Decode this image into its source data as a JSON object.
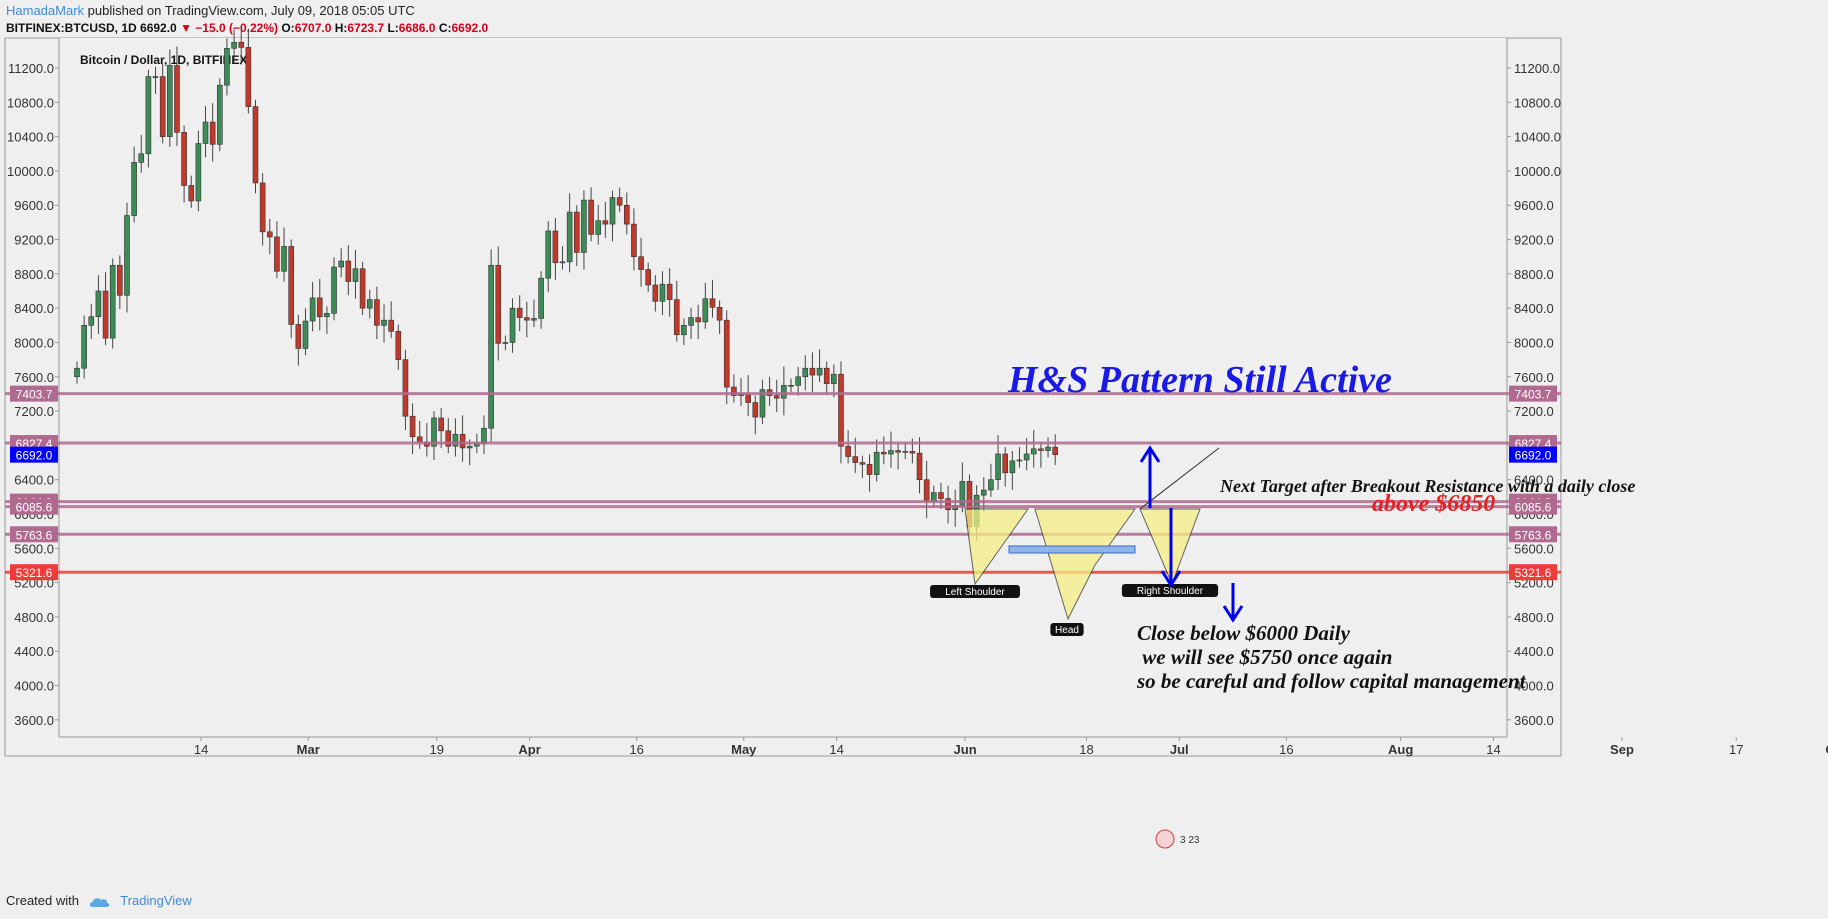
{
  "header": {
    "author": "HamadaMark",
    "published_text": "published on TradingView.com, July 09, 2018 05:05 UTC",
    "symbol": "BITFINEX:BTCUSD, 1D",
    "last": "6692.0",
    "change": "▼ −15.0 (−0.22%)",
    "o_label": "O:",
    "o": "6707.0",
    "h_label": "H:",
    "h": "6723.7",
    "l_label": "L:",
    "l": "6686.0",
    "c_label": "C:",
    "c": "6692.0"
  },
  "footer": {
    "created_with": "Created with",
    "brand": "TradingView"
  },
  "chart_data": {
    "type": "candlestick",
    "title": "Bitcoin / Dollar, 1D, BITFINEX",
    "ylim": [
      3400,
      11550
    ],
    "y_ticks": [
      "11200.0",
      "10800.0",
      "10400.0",
      "10000.0",
      "9600.0",
      "9200.0",
      "8800.0",
      "8400.0",
      "8000.0",
      "7600.0",
      "7200.0",
      "6800.0",
      "6400.0",
      "6000.0",
      "5600.0",
      "5200.0",
      "4800.0",
      "4400.0",
      "4000.0",
      "3600.0"
    ],
    "x_ticks": [
      {
        "label": "14",
        "date": "2018-02-14"
      },
      {
        "label": "Mar",
        "date": "2018-03-01"
      },
      {
        "label": "19",
        "date": "2018-03-19"
      },
      {
        "label": "Apr",
        "date": "2018-04-01"
      },
      {
        "label": "16",
        "date": "2018-04-16"
      },
      {
        "label": "May",
        "date": "2018-05-01"
      },
      {
        "label": "14",
        "date": "2018-05-14"
      },
      {
        "label": "Jun",
        "date": "2018-06-01"
      },
      {
        "label": "18",
        "date": "2018-06-18"
      },
      {
        "label": "Jul",
        "date": "2018-07-01"
      },
      {
        "label": "16",
        "date": "2018-07-16"
      },
      {
        "label": "Aug",
        "date": "2018-08-01"
      },
      {
        "label": "14",
        "date": "2018-08-14"
      },
      {
        "label": "Sep",
        "date": "2018-09-01"
      },
      {
        "label": "17",
        "date": "2018-09-17"
      },
      {
        "label": "Oct",
        "date": "2018-10-01"
      }
    ],
    "series": [
      {
        "start_date": "2018-02-06",
        "close": [
          7700,
          8200,
          8300,
          8600,
          8050,
          8900,
          8550,
          9480,
          10100,
          10200,
          11100,
          11100,
          10400,
          11230,
          10450,
          9830,
          9650,
          10320,
          10570,
          10310,
          11000,
          11430,
          11500,
          11440,
          10750,
          9860,
          9290,
          9230,
          8830,
          9120,
          8210,
          7930,
          8250,
          8520,
          8300,
          8340,
          8880,
          8950,
          8710,
          8860,
          8400,
          8500,
          8200,
          8260,
          8130,
          7800,
          7140,
          6900,
          6840,
          6790,
          7120,
          6970,
          6790,
          6930,
          6770,
          6790,
          6820,
          7000,
          8900,
          7990,
          8000,
          8400,
          8290,
          8260,
          8280,
          8750,
          9300,
          8930,
          8940,
          9520,
          9050,
          9660,
          9260,
          9420,
          9380,
          9690,
          9600,
          9380,
          9000,
          8850,
          8670,
          8480,
          8680,
          8500,
          8090,
          8200,
          8290,
          8240,
          8510,
          8410,
          8260,
          7480,
          7380,
          7400,
          7300,
          7130,
          7450,
          7380,
          7350,
          7500,
          7500,
          7600,
          7700,
          7620,
          7700,
          7520,
          7630,
          6790,
          6670,
          6600,
          6580,
          6460,
          6720,
          6700,
          6740,
          6720,
          6730,
          6710,
          6400,
          6150,
          6250,
          6180,
          6050,
          6100,
          6380,
          5850,
          6220,
          6280,
          6400,
          6700,
          6480,
          6620,
          6630,
          6700,
          6760,
          6740,
          6780,
          6692
        ],
        "name": ""
      }
    ],
    "price_levels": [
      {
        "value": "7403.7",
        "color": "#b06a8f"
      },
      {
        "value": "6827.4",
        "color": "#b06a8f"
      },
      {
        "value": "6144.3",
        "color": "#b06a8f"
      },
      {
        "value": "6085.6",
        "color": "#b06a8f"
      },
      {
        "value": "5763.6",
        "color": "#b06a8f"
      },
      {
        "value": "5321.6",
        "color": "#ef3b3b"
      }
    ],
    "last_price": {
      "value": "6692.0",
      "color": "#0000ff"
    },
    "pattern_labels": {
      "left_shoulder": "Left Shoulder",
      "head": "Head",
      "right_shoulder": "Right Shoulder"
    },
    "annotations": {
      "title": "H&S Pattern Still Active",
      "next_target": "Next Target after Breakout Resistance with a daily close",
      "above": "above $6850",
      "close_below_1": "Close below $6000 Daily",
      "close_below_2": " we will see $5750 once again",
      "close_below_3": "so be careful and follow capital management"
    },
    "event_badge": "3 23",
    "colors": {
      "up": "#3d8b57",
      "down": "#c0392b",
      "grid": "#dddddd"
    }
  }
}
